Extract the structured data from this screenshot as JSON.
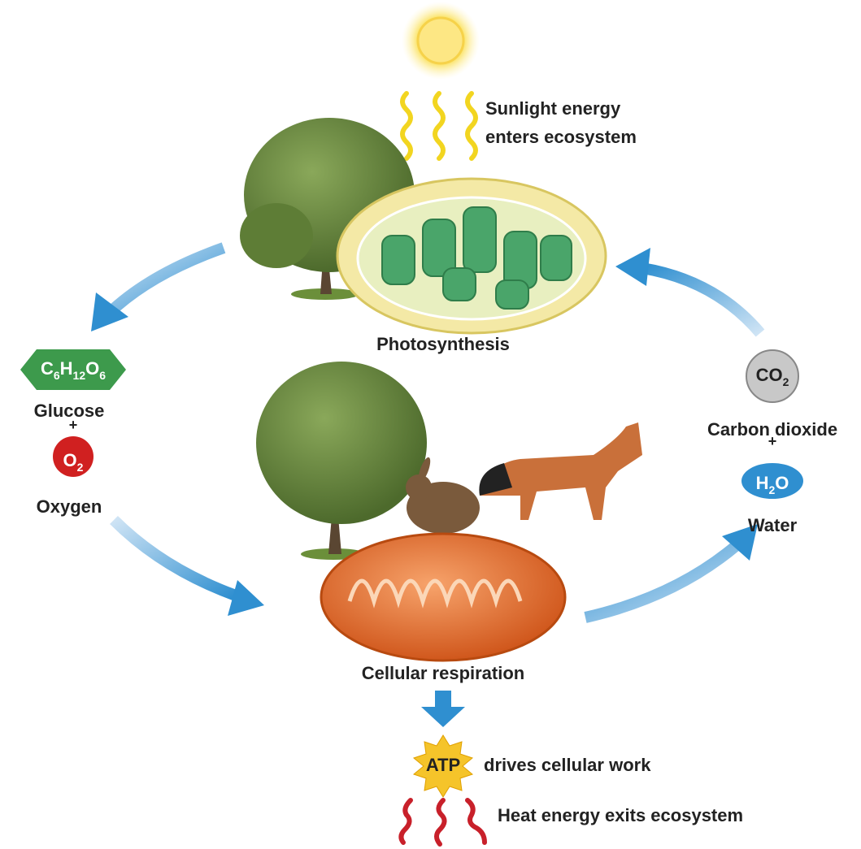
{
  "sunlight": {
    "label_lines": [
      "Sunlight energy",
      "enters ecosystem"
    ]
  },
  "photosynthesis": {
    "label": "Photosynthesis"
  },
  "glucose": {
    "formula": [
      "C",
      "6",
      "H",
      "12",
      "O",
      "6"
    ],
    "label": "Glucose"
  },
  "plus_left": "+",
  "oxygen": {
    "formula": [
      "O",
      "2"
    ],
    "label": "Oxygen"
  },
  "carbon_dioxide": {
    "formula": [
      "CO",
      "2"
    ],
    "label": "Carbon dioxide"
  },
  "plus_right": "+",
  "water": {
    "formula": [
      "H",
      "2",
      "O"
    ],
    "label": "Water"
  },
  "cellular_respiration": {
    "label": "Cellular respiration"
  },
  "atp": {
    "label": "ATP",
    "text": "drives cellular work"
  },
  "heat": {
    "label": "Heat energy exits ecosystem"
  }
}
